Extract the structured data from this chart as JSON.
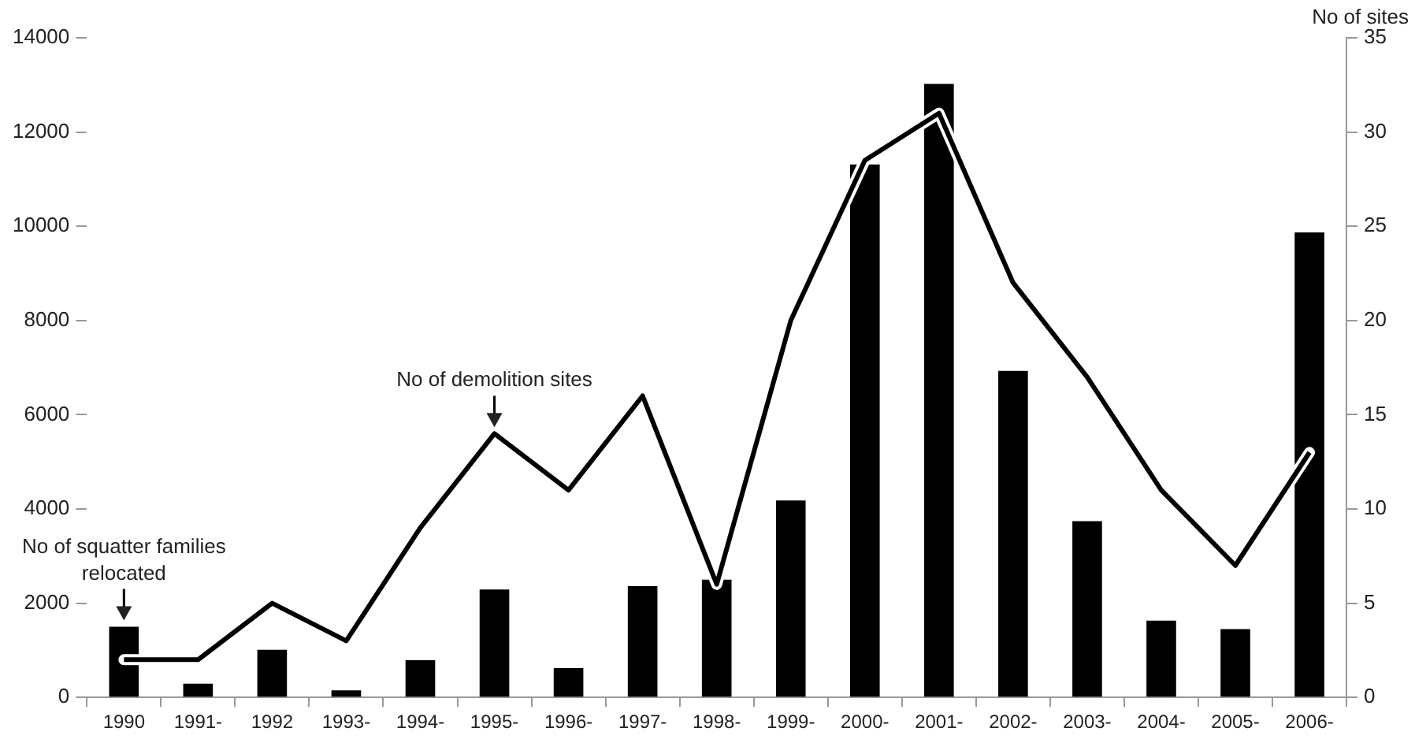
{
  "chart_data": {
    "type": "bar",
    "categories": [
      "1990",
      "1991-",
      "1992",
      "1993-",
      "1994-",
      "1995-",
      "1996-",
      "1997-",
      "1998-",
      "1999-",
      "2000-",
      "2001-",
      "2002-",
      "2003-",
      "2004-",
      "2005-",
      "2006-"
    ],
    "series": [
      {
        "color": "#000000",
        "values": [
          1500,
          290,
          1010,
          150,
          790,
          2290,
          620,
          2360,
          2500,
          4180,
          11310,
          13020,
          6930,
          3740,
          1630,
          1450,
          9870
        ]
      },
      {
        "type": "line",
        "axis": "y2",
        "color": "#000000",
        "values": [
          2,
          2,
          5,
          3,
          9,
          14,
          11,
          16,
          6,
          20,
          28.5,
          31,
          22,
          17,
          11,
          7,
          13
        ]
      }
    ],
    "ylim": [
      0,
      14000
    ],
    "yticks": [
      0,
      2000,
      4000,
      6000,
      8000,
      10000,
      12000,
      14000
    ],
    "y2lim": [
      0,
      35
    ],
    "y2ticks": [
      0,
      5,
      10,
      15,
      20,
      25,
      30,
      35
    ],
    "y2label": "No of sites",
    "annotations": [
      {
        "text": "No of squatter families relocated",
        "x": "1990",
        "y": 1500
      },
      {
        "text": "No of demolition sites",
        "x": "1995-",
        "y": 5600
      }
    ],
    "grid": false,
    "legend": false,
    "marker": "none"
  }
}
